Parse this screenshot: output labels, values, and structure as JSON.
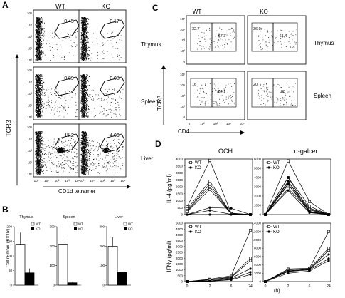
{
  "panel_letters": {
    "A": "A",
    "B": "B",
    "C": "C",
    "D": "D"
  },
  "panel_a": {
    "col_headers": [
      "WT",
      "KO"
    ],
    "rows": [
      {
        "tissue": "Thymus",
        "gates": [
          "0.45",
          "0.17"
        ]
      },
      {
        "tissue": "Spleen",
        "gates": [
          "0.89",
          "0.08"
        ]
      },
      {
        "tissue": "Liver",
        "gates": [
          "15.2",
          "4.06"
        ]
      }
    ],
    "ylabel": "TCRβ",
    "xlabel": "CD1d tetramer",
    "x_ticks": [
      "10⁰",
      "10¹",
      "10²",
      "10³",
      "10⁴"
    ],
    "y_ticks": [
      "10⁰",
      "10¹",
      "10²",
      "10³",
      "10⁴"
    ]
  },
  "panel_b": {
    "ylabel": "Cell number (1000x)",
    "legend": [
      "WT",
      "KO"
    ],
    "charts": [
      {
        "title": "Thymus",
        "wt": 140,
        "ko": 42,
        "wt_err": 40,
        "ko_err": 15,
        "ymax": 200,
        "ticks": [
          "200",
          "150",
          "100",
          "50",
          "0"
        ]
      },
      {
        "title": "Spleen",
        "wt": 210,
        "ko": 12,
        "wt_err": 30,
        "ko_err": 3,
        "ymax": 300,
        "ticks": [
          "300",
          "200",
          "100",
          "0"
        ]
      },
      {
        "title": "Liver",
        "wt": 200,
        "ko": 65,
        "wt_err": 45,
        "ko_err": 8,
        "ymax": 300,
        "ticks": [
          "300",
          "200",
          "100",
          "0"
        ]
      }
    ]
  },
  "panel_c": {
    "col_headers": [
      "WT",
      "KO"
    ],
    "rows": [
      {
        "tissue": "Thymus",
        "left": [
          "32.7",
          "36.0"
        ],
        "right": [
          "67.3",
          "61.4"
        ]
      },
      {
        "tissue": "Spleen",
        "left": [
          "16",
          "20"
        ],
        "right": [
          "84.1",
          "80"
        ]
      }
    ],
    "ylabel": "TCRβ",
    "xlabel": "CD4",
    "x_ticks": [
      "0",
      "10²",
      "10³",
      "10⁴",
      "10⁵"
    ],
    "y_ticks": [
      "0",
      "10²",
      "10³",
      "10⁴",
      "10⁵"
    ]
  },
  "panel_d": {
    "col_titles": [
      "OCH",
      "α-galcer"
    ],
    "legend": [
      "WT",
      "KO"
    ],
    "x_ticks": [
      "0",
      "2",
      "6",
      "24"
    ],
    "x_unit": "(h)",
    "il4": {
      "ylabel": "IL-4 (pg/ml)",
      "och_ticks": [
        "4000",
        "3500",
        "3000",
        "2500",
        "2000",
        "1500",
        "1000",
        "500",
        "0"
      ],
      "gal_ticks": [
        "6000",
        "5000",
        "4000",
        "3000",
        "2000",
        "1000",
        "0"
      ]
    },
    "ifn": {
      "ylabel": "IFNγ (pg/ml)",
      "och_ticks": [
        "5000",
        "4500",
        "4000",
        "3500",
        "3000",
        "2500",
        "2000",
        "1500",
        "1000",
        "500",
        "0"
      ],
      "gal_ticks": [
        "14000",
        "12000",
        "10000",
        "8000",
        "6000",
        "4000",
        "2000",
        "0"
      ]
    }
  },
  "chart_data": [
    {
      "type": "bar",
      "title": "Thymus",
      "categories": [
        "WT",
        "KO"
      ],
      "values": [
        140,
        42
      ],
      "ylim": [
        0,
        200
      ],
      "ylabel": "Cell number (1000x)"
    },
    {
      "type": "bar",
      "title": "Spleen",
      "categories": [
        "WT",
        "KO"
      ],
      "values": [
        210,
        12
      ],
      "ylim": [
        0,
        300
      ]
    },
    {
      "type": "bar",
      "title": "Liver",
      "categories": [
        "WT",
        "KO"
      ],
      "values": [
        200,
        65
      ],
      "ylim": [
        0,
        300
      ]
    },
    {
      "type": "line",
      "title": "OCH",
      "ylabel": "IL-4 (pg/ml)",
      "x": [
        0,
        2,
        6,
        24
      ],
      "ylim": [
        0,
        4000
      ],
      "series": [
        {
          "name": "WT",
          "values": [
            [
              550,
              3900,
              100,
              0
            ],
            [
              400,
              2400,
              80,
              0
            ],
            [
              300,
              2200,
              70,
              0
            ],
            [
              250,
              2000,
              60,
              0
            ],
            [
              200,
              1800,
              50,
              0
            ]
          ]
        },
        {
          "name": "KO",
          "values": [
            [
              0,
              500,
              450,
              0
            ],
            [
              0,
              300,
              20,
              0
            ],
            [
              0,
              0,
              0,
              0
            ]
          ]
        }
      ]
    },
    {
      "type": "line",
      "title": "α-galcer",
      "ylabel": "IL-4 (pg/ml)",
      "x": [
        0,
        2,
        6,
        24
      ],
      "ylim": [
        0,
        6000
      ],
      "series": [
        {
          "name": "WT",
          "values": [
            [
              0,
              5800,
              1400,
              0
            ],
            [
              0,
              4000,
              900,
              0
            ],
            [
              0,
              3500,
              700,
              0
            ],
            [
              0,
              3200,
              600,
              0
            ],
            [
              0,
              2800,
              500,
              0
            ]
          ]
        },
        {
          "name": "KO",
          "values": [
            [
              0,
              4000,
              350,
              0
            ],
            [
              0,
              3600,
              300,
              0
            ],
            [
              0,
              3300,
              250,
              0
            ],
            [
              0,
              2600,
              200,
              0
            ]
          ]
        }
      ]
    },
    {
      "type": "line",
      "title": "OCH",
      "ylabel": "IFNγ (pg/ml)",
      "x": [
        0,
        2,
        6,
        24
      ],
      "ylim": [
        0,
        5000
      ],
      "series": [
        {
          "name": "WT",
          "values": [
            [
              0,
              200,
              500,
              4400
            ],
            [
              0,
              150,
              400,
              2000
            ],
            [
              0,
              120,
              350,
              1800
            ]
          ]
        },
        {
          "name": "KO",
          "values": [
            [
              0,
              50,
              300,
              1100
            ],
            [
              0,
              40,
              200,
              800
            ],
            [
              0,
              30,
              150,
              600
            ]
          ]
        }
      ]
    },
    {
      "type": "line",
      "title": "α-galcer",
      "ylabel": "IFNγ (pg/ml)",
      "x": [
        0,
        2,
        6,
        24
      ],
      "ylim": [
        0,
        14000
      ],
      "series": [
        {
          "name": "WT",
          "values": [
            [
              0,
              3000,
              3200,
              12000
            ],
            [
              0,
              2800,
              3100,
              8000
            ],
            [
              0,
              2600,
              2900,
              7500
            ]
          ]
        },
        {
          "name": "KO",
          "values": [
            [
              0,
              2500,
              3000,
              6500
            ],
            [
              0,
              2400,
              2800,
              5500
            ],
            [
              0,
              2000,
              2500,
              5000
            ]
          ]
        }
      ]
    }
  ]
}
